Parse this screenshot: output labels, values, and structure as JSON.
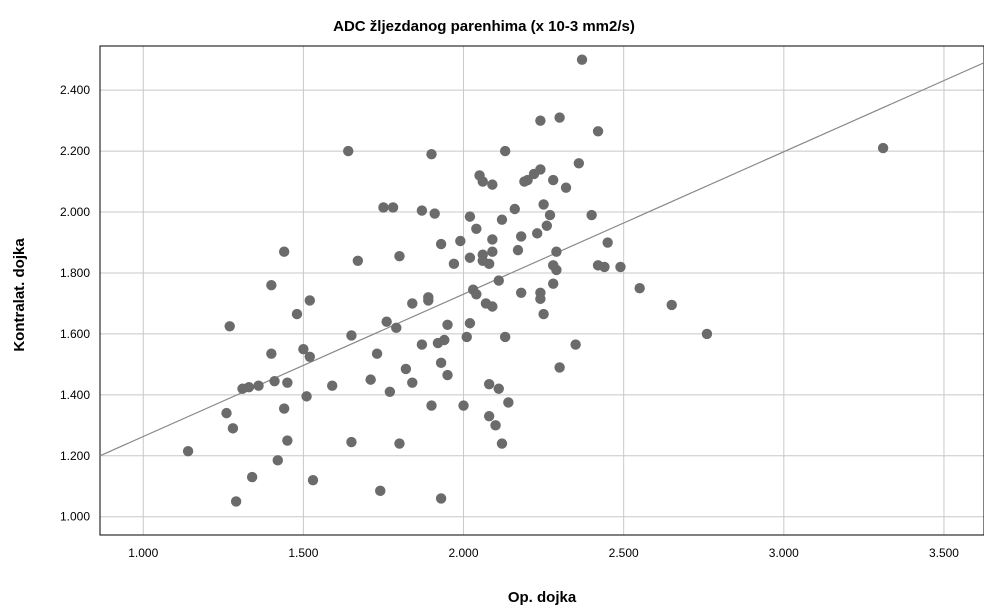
{
  "chart_data": {
    "type": "scatter",
    "title": "ADC žljezdanog parenhima (x 10-3 mm2/s)",
    "xlabel": "Op. dojka",
    "ylabel": "Kontralat. dojka",
    "xlim": [
      0.865,
      3.625
    ],
    "ylim": [
      0.94,
      2.545
    ],
    "xticks": [
      1.0,
      1.5,
      2.0,
      2.5,
      3.0,
      3.5
    ],
    "yticks": [
      1.0,
      1.2,
      1.4,
      1.6,
      1.8,
      2.0,
      2.2,
      2.4
    ],
    "xtick_labels": [
      "1.000",
      "1.500",
      "2.000",
      "2.500",
      "3.000",
      "3.500"
    ],
    "ytick_labels": [
      "1.000",
      "1.200",
      "1.400",
      "1.600",
      "1.800",
      "2.000",
      "2.200",
      "2.400"
    ],
    "grid": true,
    "fit_line": {
      "x": [
        0.865,
        3.625
      ],
      "y": [
        1.2,
        2.49
      ]
    },
    "point_color": "#6b6b6b",
    "line_color": "#888888",
    "points": [
      [
        1.14,
        1.215
      ],
      [
        1.26,
        1.34
      ],
      [
        1.27,
        1.625
      ],
      [
        1.28,
        1.29
      ],
      [
        1.29,
        1.05
      ],
      [
        1.31,
        1.42
      ],
      [
        1.33,
        1.425
      ],
      [
        1.34,
        1.13
      ],
      [
        1.36,
        1.43
      ],
      [
        1.4,
        1.76
      ],
      [
        1.4,
        1.535
      ],
      [
        1.41,
        1.445
      ],
      [
        1.42,
        1.185
      ],
      [
        1.44,
        1.87
      ],
      [
        1.44,
        1.355
      ],
      [
        1.45,
        1.44
      ],
      [
        1.45,
        1.25
      ],
      [
        1.48,
        1.665
      ],
      [
        1.5,
        1.55
      ],
      [
        1.51,
        1.395
      ],
      [
        1.52,
        1.71
      ],
      [
        1.52,
        1.525
      ],
      [
        1.53,
        1.12
      ],
      [
        1.59,
        1.43
      ],
      [
        1.64,
        2.2
      ],
      [
        1.65,
        1.245
      ],
      [
        1.65,
        1.595
      ],
      [
        1.67,
        1.84
      ],
      [
        1.71,
        1.45
      ],
      [
        1.73,
        1.535
      ],
      [
        1.74,
        1.085
      ],
      [
        1.75,
        2.015
      ],
      [
        1.76,
        1.64
      ],
      [
        1.77,
        1.41
      ],
      [
        1.78,
        2.015
      ],
      [
        1.79,
        1.62
      ],
      [
        1.8,
        1.855
      ],
      [
        1.8,
        1.24
      ],
      [
        1.82,
        1.485
      ],
      [
        1.84,
        1.7
      ],
      [
        1.84,
        1.44
      ],
      [
        1.87,
        2.005
      ],
      [
        1.87,
        1.565
      ],
      [
        1.89,
        1.72
      ],
      [
        1.89,
        1.71
      ],
      [
        1.9,
        2.19
      ],
      [
        1.9,
        1.365
      ],
      [
        1.91,
        1.995
      ],
      [
        1.92,
        1.57
      ],
      [
        1.93,
        1.895
      ],
      [
        1.93,
        1.505
      ],
      [
        1.93,
        1.06
      ],
      [
        1.94,
        1.58
      ],
      [
        1.95,
        1.63
      ],
      [
        1.95,
        1.465
      ],
      [
        1.97,
        1.83
      ],
      [
        1.99,
        1.905
      ],
      [
        2.0,
        1.365
      ],
      [
        2.01,
        1.59
      ],
      [
        2.02,
        1.985
      ],
      [
        2.02,
        1.85
      ],
      [
        2.02,
        1.635
      ],
      [
        2.03,
        1.745
      ],
      [
        2.04,
        1.945
      ],
      [
        2.04,
        1.73
      ],
      [
        2.05,
        2.12
      ],
      [
        2.06,
        2.1
      ],
      [
        2.06,
        1.86
      ],
      [
        2.06,
        1.84
      ],
      [
        2.07,
        1.7
      ],
      [
        2.08,
        1.83
      ],
      [
        2.08,
        1.435
      ],
      [
        2.08,
        1.33
      ],
      [
        2.09,
        2.09
      ],
      [
        2.09,
        1.91
      ],
      [
        2.09,
        1.87
      ],
      [
        2.09,
        1.69
      ],
      [
        2.1,
        1.3
      ],
      [
        2.11,
        1.775
      ],
      [
        2.11,
        1.42
      ],
      [
        2.12,
        1.975
      ],
      [
        2.12,
        1.24
      ],
      [
        2.13,
        2.2
      ],
      [
        2.13,
        1.59
      ],
      [
        2.14,
        1.375
      ],
      [
        2.16,
        2.01
      ],
      [
        2.17,
        1.875
      ],
      [
        2.18,
        1.92
      ],
      [
        2.18,
        1.735
      ],
      [
        2.19,
        2.1
      ],
      [
        2.2,
        2.105
      ],
      [
        2.22,
        2.125
      ],
      [
        2.23,
        1.93
      ],
      [
        2.24,
        2.14
      ],
      [
        2.24,
        2.3
      ],
      [
        2.24,
        1.715
      ],
      [
        2.24,
        1.735
      ],
      [
        2.25,
        1.665
      ],
      [
        2.25,
        2.025
      ],
      [
        2.26,
        1.955
      ],
      [
        2.27,
        1.99
      ],
      [
        2.28,
        1.825
      ],
      [
        2.28,
        2.105
      ],
      [
        2.28,
        1.765
      ],
      [
        2.29,
        1.87
      ],
      [
        2.29,
        1.81
      ],
      [
        2.3,
        2.31
      ],
      [
        2.3,
        1.49
      ],
      [
        2.32,
        2.08
      ],
      [
        2.35,
        1.565
      ],
      [
        2.36,
        2.16
      ],
      [
        2.37,
        2.5
      ],
      [
        2.4,
        1.99
      ],
      [
        2.42,
        2.265
      ],
      [
        2.42,
        1.825
      ],
      [
        2.44,
        1.82
      ],
      [
        2.45,
        1.9
      ],
      [
        2.49,
        1.82
      ],
      [
        2.55,
        1.75
      ],
      [
        2.65,
        1.695
      ],
      [
        2.76,
        1.6
      ],
      [
        3.31,
        2.21
      ]
    ]
  }
}
